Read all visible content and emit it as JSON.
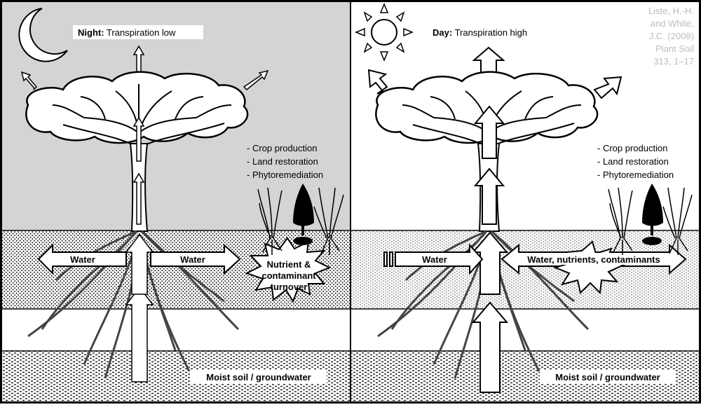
{
  "night": {
    "title_bold": "Night:",
    "title_rest": " Transpiration low",
    "uses": [
      "- Crop production",
      "- Land restoration",
      "- Phytoremediation"
    ],
    "water_left": "Water",
    "water_right": "Water",
    "burst": [
      "Nutrient &",
      "contaminant",
      "turnover"
    ],
    "groundwater": "Moist soil / groundwater"
  },
  "day": {
    "title_bold": "Day:",
    "title_rest": " Transpiration high",
    "uses": [
      "- Crop production",
      "- Land restoration",
      "- Phytoremediation"
    ],
    "water": "Water",
    "water_long": "Water, nutrients, contaminants",
    "groundwater": "Moist soil / groundwater"
  },
  "citation": [
    "Liste, H.-H.",
    "and White,",
    "J.C. (2008)",
    "Plant Soil",
    "313, 1–17"
  ],
  "colors": {
    "night_sky": "#d4d4d4",
    "day_sky": "#ffffff",
    "ink": "#000000",
    "citation": "#bdbdbd"
  }
}
